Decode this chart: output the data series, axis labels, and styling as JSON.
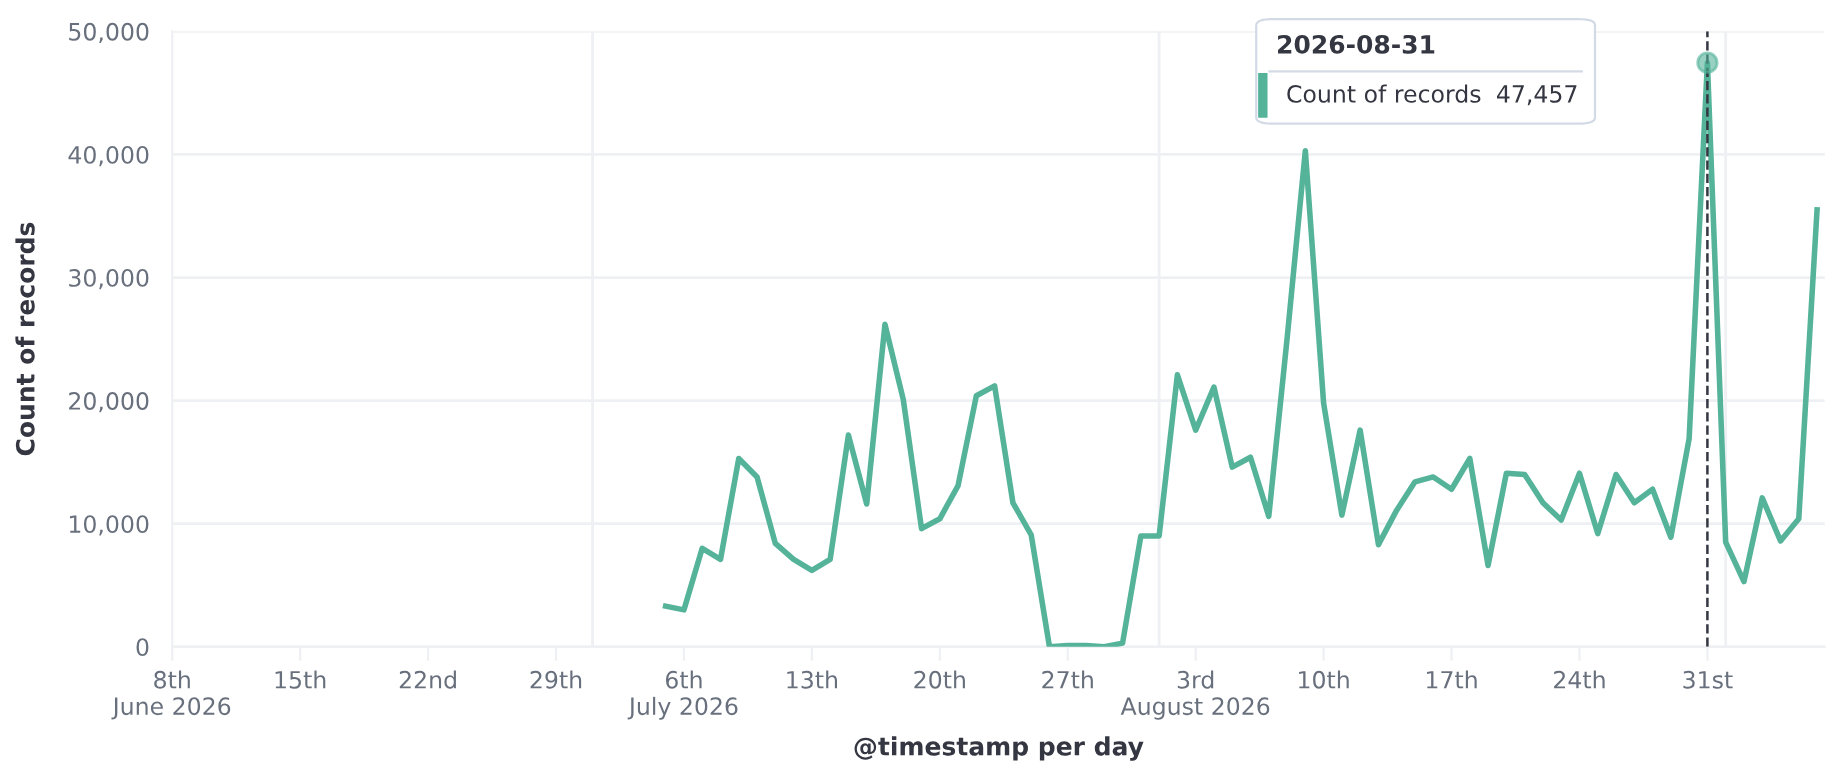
{
  "chart_data": {
    "type": "line",
    "xlabel": "@timestamp per day",
    "ylabel": "Count of records",
    "x": [
      "2026-07-05",
      "2026-07-06",
      "2026-07-07",
      "2026-07-08",
      "2026-07-09",
      "2026-07-10",
      "2026-07-11",
      "2026-07-12",
      "2026-07-13",
      "2026-07-14",
      "2026-07-15",
      "2026-07-16",
      "2026-07-17",
      "2026-07-18",
      "2026-07-19",
      "2026-07-20",
      "2026-07-21",
      "2026-07-22",
      "2026-07-23",
      "2026-07-24",
      "2026-07-25",
      "2026-07-26",
      "2026-07-27",
      "2026-07-28",
      "2026-07-29",
      "2026-07-30",
      "2026-07-31",
      "2026-08-01",
      "2026-08-02",
      "2026-08-03",
      "2026-08-04",
      "2026-08-05",
      "2026-08-06",
      "2026-08-07",
      "2026-08-08",
      "2026-08-09",
      "2026-08-10",
      "2026-08-11",
      "2026-08-12",
      "2026-08-13",
      "2026-08-14",
      "2026-08-15",
      "2026-08-16",
      "2026-08-17",
      "2026-08-18",
      "2026-08-19",
      "2026-08-20",
      "2026-08-21",
      "2026-08-22",
      "2026-08-23",
      "2026-08-24",
      "2026-08-25",
      "2026-08-26",
      "2026-08-27",
      "2026-08-28",
      "2026-08-29",
      "2026-08-30",
      "2026-08-31",
      "2026-09-01",
      "2026-09-02",
      "2026-09-03",
      "2026-09-04",
      "2026-09-05",
      "2026-09-06"
    ],
    "series": [
      {
        "color": "#54b399",
        "values": [
          3300,
          3000,
          8000,
          7100,
          15300,
          13800,
          8400,
          7100,
          6200,
          7100,
          17200,
          11600,
          26200,
          20100,
          9600,
          10400,
          13100,
          20400,
          21200,
          11700,
          9100,
          0,
          100,
          100,
          0,
          300,
          9000,
          9000,
          22100,
          17600,
          21100,
          14600,
          15400,
          10600,
          25000,
          40300,
          19800,
          10700,
          17600,
          8300,
          11100,
          13400,
          13800,
          12800,
          15300,
          6600,
          14100,
          14000,
          11700,
          10300,
          14100,
          9200,
          14000,
          11700,
          12800,
          8900,
          16900,
          47457,
          8500,
          5300,
          12100,
          8600,
          10400,
          35500
        ]
      }
    ],
    "xlim": [
      "2026-06-08",
      "2026-09-06T10:00"
    ],
    "xticks": [
      {
        "value": "2026-06-08",
        "label": "8th\nJune 2026"
      },
      {
        "value": "2026-06-15",
        "label": "15th"
      },
      {
        "value": "2026-06-22",
        "label": "22nd"
      },
      {
        "value": "2026-06-29",
        "label": "29th"
      },
      {
        "value": "2026-07-06",
        "label": "6th\nJuly 2026"
      },
      {
        "value": "2026-07-13",
        "label": "13th"
      },
      {
        "value": "2026-07-20",
        "label": "20th"
      },
      {
        "value": "2026-07-27",
        "label": "27th"
      },
      {
        "value": "2026-08-03",
        "label": "3rd\nAugust 2026"
      },
      {
        "value": "2026-08-10",
        "label": "10th"
      },
      {
        "value": "2026-08-17",
        "label": "17th"
      },
      {
        "value": "2026-08-24",
        "label": "24th"
      },
      {
        "value": "2026-08-31",
        "label": "31st"
      }
    ],
    "ylim": [
      0,
      50000
    ],
    "yticks": [
      0,
      {
        "value": 10000,
        "label": "10,000"
      },
      {
        "value": 20000,
        "label": "20,000"
      },
      {
        "value": 30000,
        "label": "30,000"
      },
      {
        "value": 40000,
        "label": "40,000"
      },
      {
        "value": 50000,
        "label": "50,000"
      }
    ],
    "grid": true,
    "marker": "none",
    "line_style": "solid",
    "ref_lines": [
      {
        "axis": "x",
        "value": "2026-08-31",
        "label": null,
        "color": "#343741",
        "line_style": "dashed"
      }
    ],
    "annotations": [
      "2026-08-31",
      "Count of records",
      "47,457"
    ]
  }
}
